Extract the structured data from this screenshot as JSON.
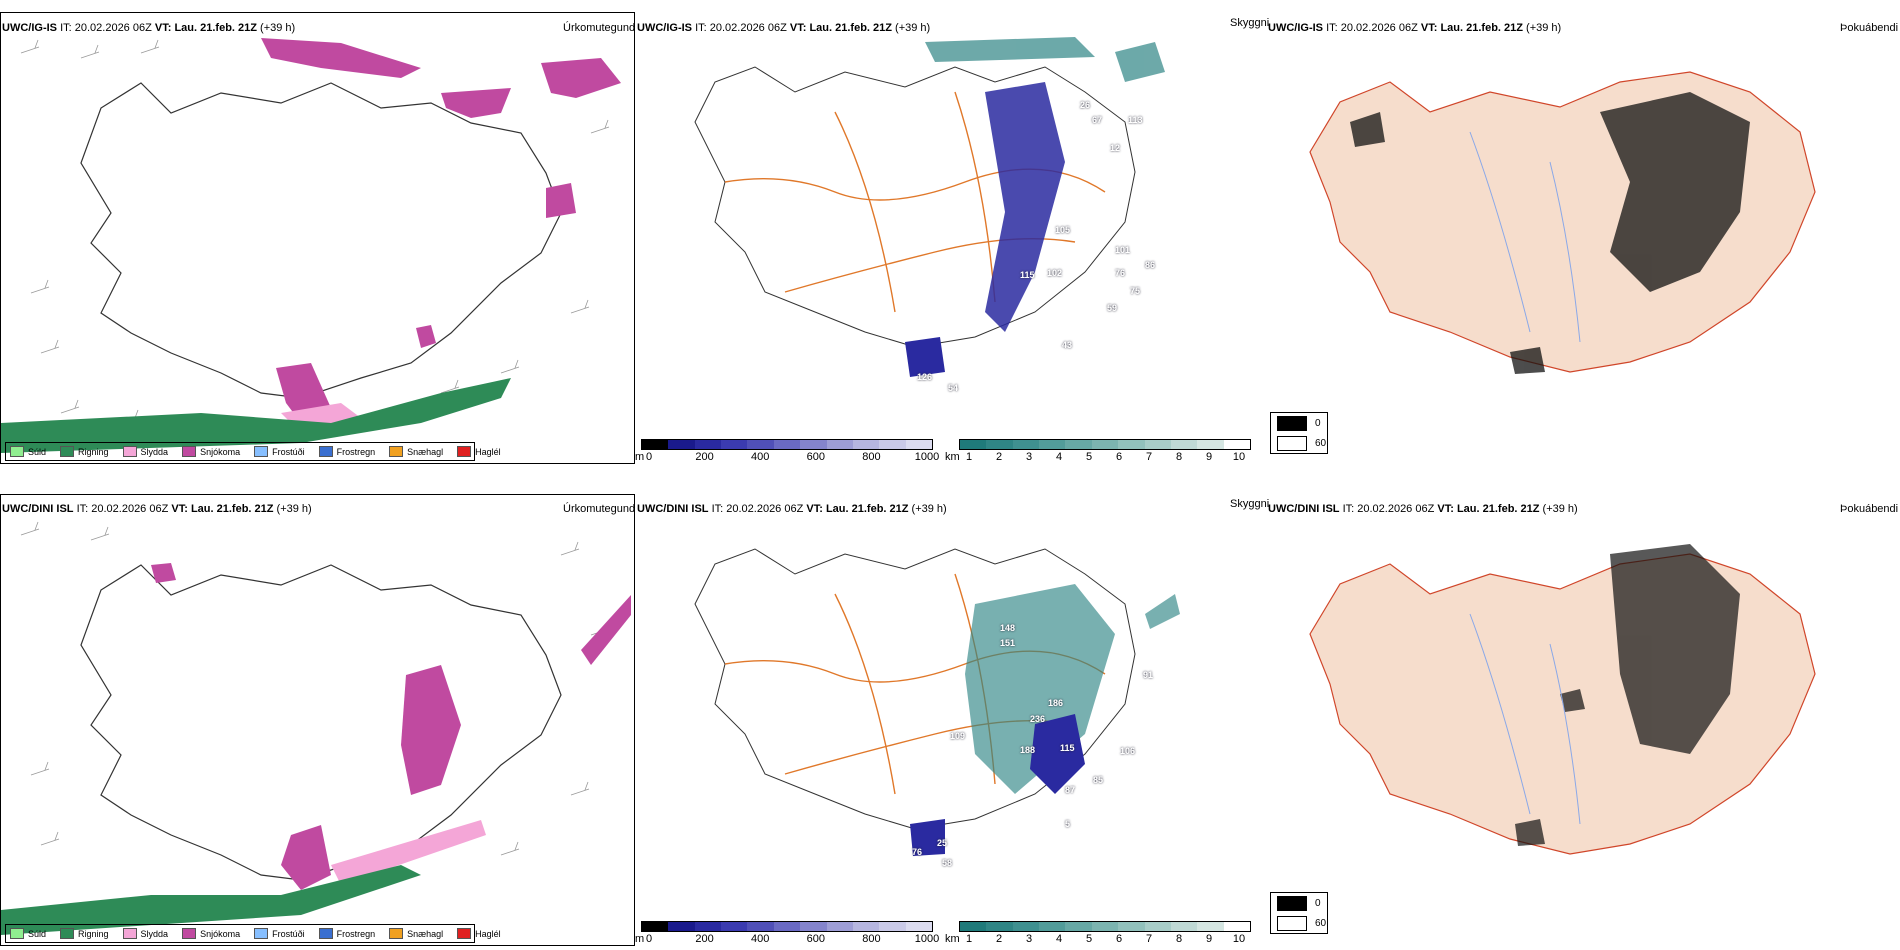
{
  "colors": {
    "outline": "#333333",
    "roads": "#e0782a",
    "rivers": "#8aa8e8",
    "land_fill": "#f6ddcc",
    "precip_legend_border": "#000000"
  },
  "rows": [
    {
      "model": "UWC/IG-IS",
      "init_label": "IT:",
      "init_time": "20.02.2026 06Z",
      "valid_label": "VT:",
      "valid_time": "Lau. 21.feb. 21Z",
      "lead": "(+39 h)"
    },
    {
      "model": "UWC/DINI ISL",
      "init_label": "IT:",
      "init_time": "20.02.2026 06Z",
      "valid_label": "VT:",
      "valid_time": "Lau. 21.feb. 21Z",
      "lead": "(+39 h)"
    }
  ],
  "panel_labels": {
    "precip_type": "Úrkomutegund",
    "cloud_ceiling": "Skyggni",
    "fog": "Þokuábendi"
  },
  "precip_legend": [
    {
      "label": "Súld",
      "color": "#90ee90"
    },
    {
      "label": "Rigning",
      "color": "#2e8b57"
    },
    {
      "label": "Slydda",
      "color": "#f4a6d7"
    },
    {
      "label": "Snjókoma",
      "color": "#c04aa0"
    },
    {
      "label": "Frostúði",
      "color": "#87bfff"
    },
    {
      "label": "Frostregn",
      "color": "#3a6fd0"
    },
    {
      "label": "Snæhagl",
      "color": "#f0a020"
    },
    {
      "label": "Haglél",
      "color": "#e02020"
    }
  ],
  "ceiling_bar": {
    "unit": "m",
    "ticks": [
      "0",
      "200",
      "400",
      "600",
      "800",
      "1000"
    ],
    "colors": [
      "#000000",
      "#1a1a8c",
      "#2a2aa0",
      "#3b3bb0",
      "#5050b8",
      "#6a6ac4",
      "#8484cc",
      "#9e9ed6",
      "#b6b6e0",
      "#cacae8",
      "#dcdcf0"
    ]
  },
  "visibility_bar": {
    "unit": "km",
    "ticks": [
      "1",
      "2",
      "3",
      "4",
      "5",
      "6",
      "7",
      "8",
      "9",
      "10"
    ],
    "colors": [
      "#1f7a7a",
      "#2f8585",
      "#3f9090",
      "#529c9a",
      "#67a8a5",
      "#7cb4b0",
      "#92c1bc",
      "#a8cdc8",
      "#bfd9d5",
      "#d5e6e2",
      "#ffffff"
    ]
  },
  "fog_legend": [
    {
      "value": "0",
      "color": "#000000"
    },
    {
      "value": "60",
      "color": "#ffffff"
    }
  ],
  "ceiling_values_top": [
    "26",
    "67",
    "113",
    "12",
    "105",
    "101",
    "76",
    "75",
    "59",
    "43",
    "115",
    "102",
    "86",
    "126",
    "54"
  ],
  "ceiling_values_bottom": [
    "148",
    "151",
    "186",
    "236",
    "109",
    "188",
    "115",
    "106",
    "85",
    "87",
    "5",
    "91",
    "76",
    "25",
    "58"
  ]
}
